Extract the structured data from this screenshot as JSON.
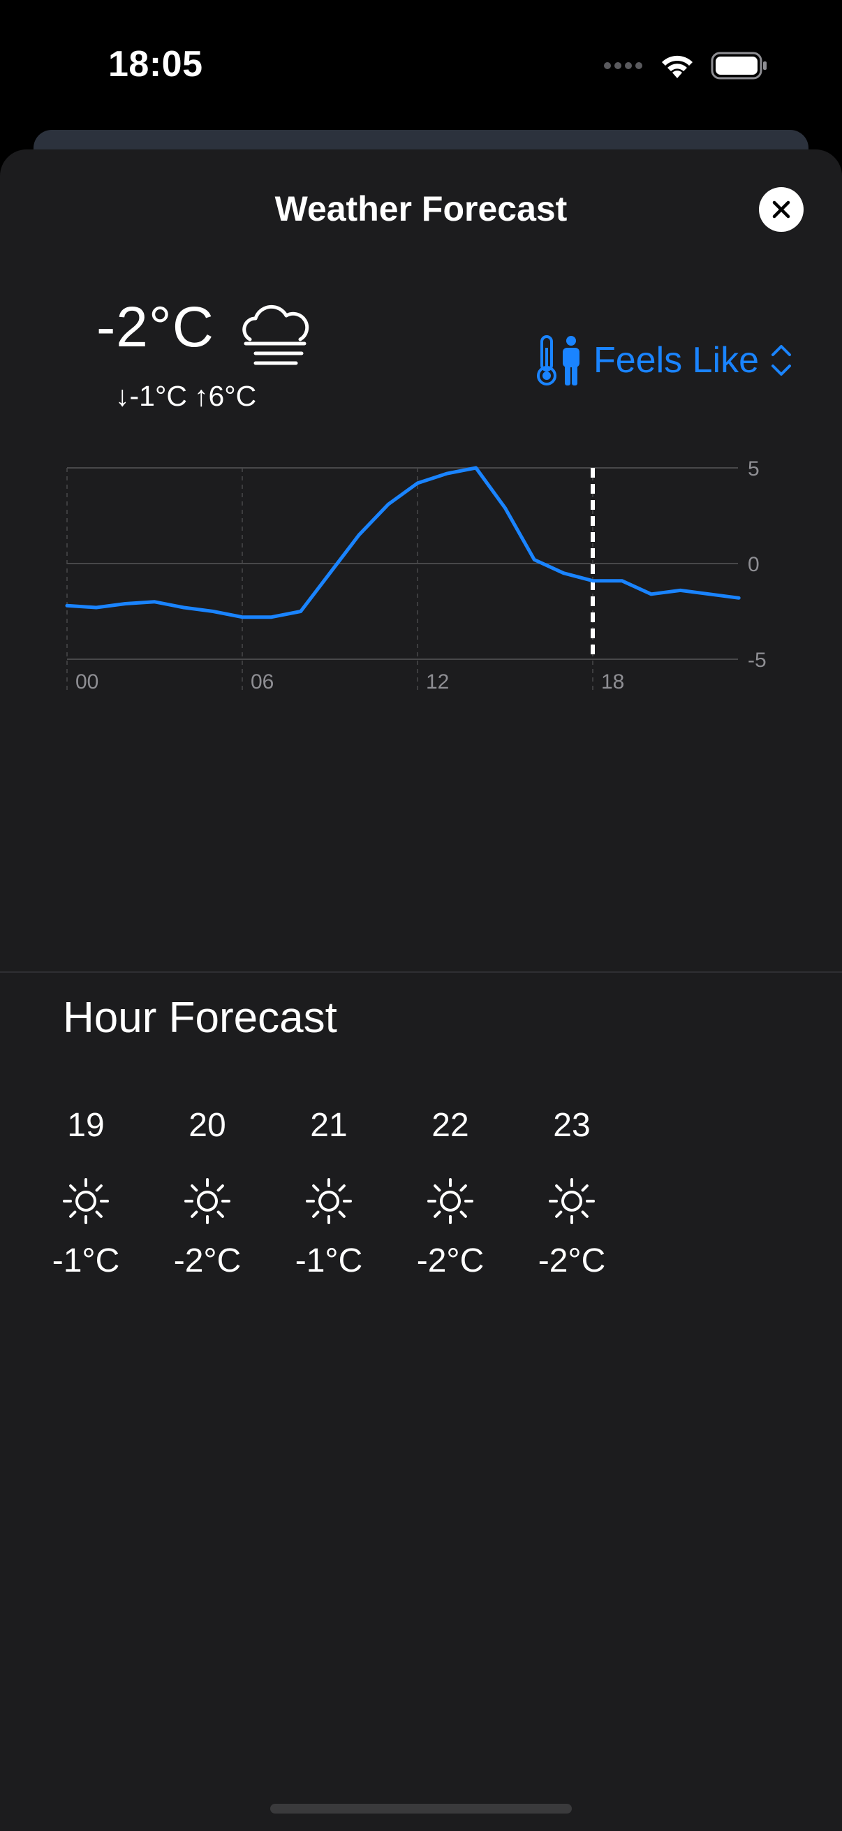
{
  "status_bar": {
    "time": "18:05",
    "icons": [
      "signal-dots-icon",
      "wifi-icon",
      "battery-icon"
    ]
  },
  "sheet": {
    "title": "Weather Forecast",
    "close_icon": "xmark-icon"
  },
  "current": {
    "temperature": "-2°C",
    "condition_icon": "fog-icon",
    "low": "↓-1°C",
    "high": "↑6°C"
  },
  "metric_selector": {
    "label": "Feels Like",
    "icon": "thermometer-person-icon",
    "chevron": "chevron-up-down-icon"
  },
  "chart_data": {
    "type": "line",
    "x_tick_labels": [
      "00",
      "06",
      "12",
      "18"
    ],
    "y_tick_labels": [
      "5",
      "0",
      "-5"
    ],
    "ylim": [
      -5,
      5
    ],
    "xlim": [
      0,
      23
    ],
    "current_hour_marker": 18,
    "grid": true,
    "series": [
      {
        "x": [
          0,
          1,
          2,
          3,
          4,
          5,
          6,
          7,
          8,
          9,
          10,
          11,
          12,
          13,
          14,
          15,
          16,
          17,
          18,
          19,
          20,
          21,
          22,
          23
        ],
        "values": [
          -2.2,
          -2.3,
          -2.1,
          -2.0,
          -2.3,
          -2.5,
          -2.8,
          -2.8,
          -2.5,
          -0.5,
          1.5,
          3.1,
          4.2,
          4.7,
          5.0,
          2.9,
          0.2,
          -0.5,
          -0.9,
          -0.9,
          -1.6,
          -1.4,
          -1.6,
          -1.8
        ],
        "color": "#1a84ff"
      }
    ],
    "colors": {
      "line": "#1a84ff",
      "marker": "#ffffff",
      "grid": "#48484a",
      "tick_label": "#8e8e93"
    }
  },
  "hour_forecast": {
    "title": "Hour Forecast",
    "items": [
      {
        "hour": "19",
        "icon": "sun-icon",
        "temp": "-1°C"
      },
      {
        "hour": "20",
        "icon": "sun-icon",
        "temp": "-2°C"
      },
      {
        "hour": "21",
        "icon": "sun-icon",
        "temp": "-1°C"
      },
      {
        "hour": "22",
        "icon": "sun-icon",
        "temp": "-2°C"
      },
      {
        "hour": "23",
        "icon": "sun-icon",
        "temp": "-2°C"
      }
    ]
  }
}
